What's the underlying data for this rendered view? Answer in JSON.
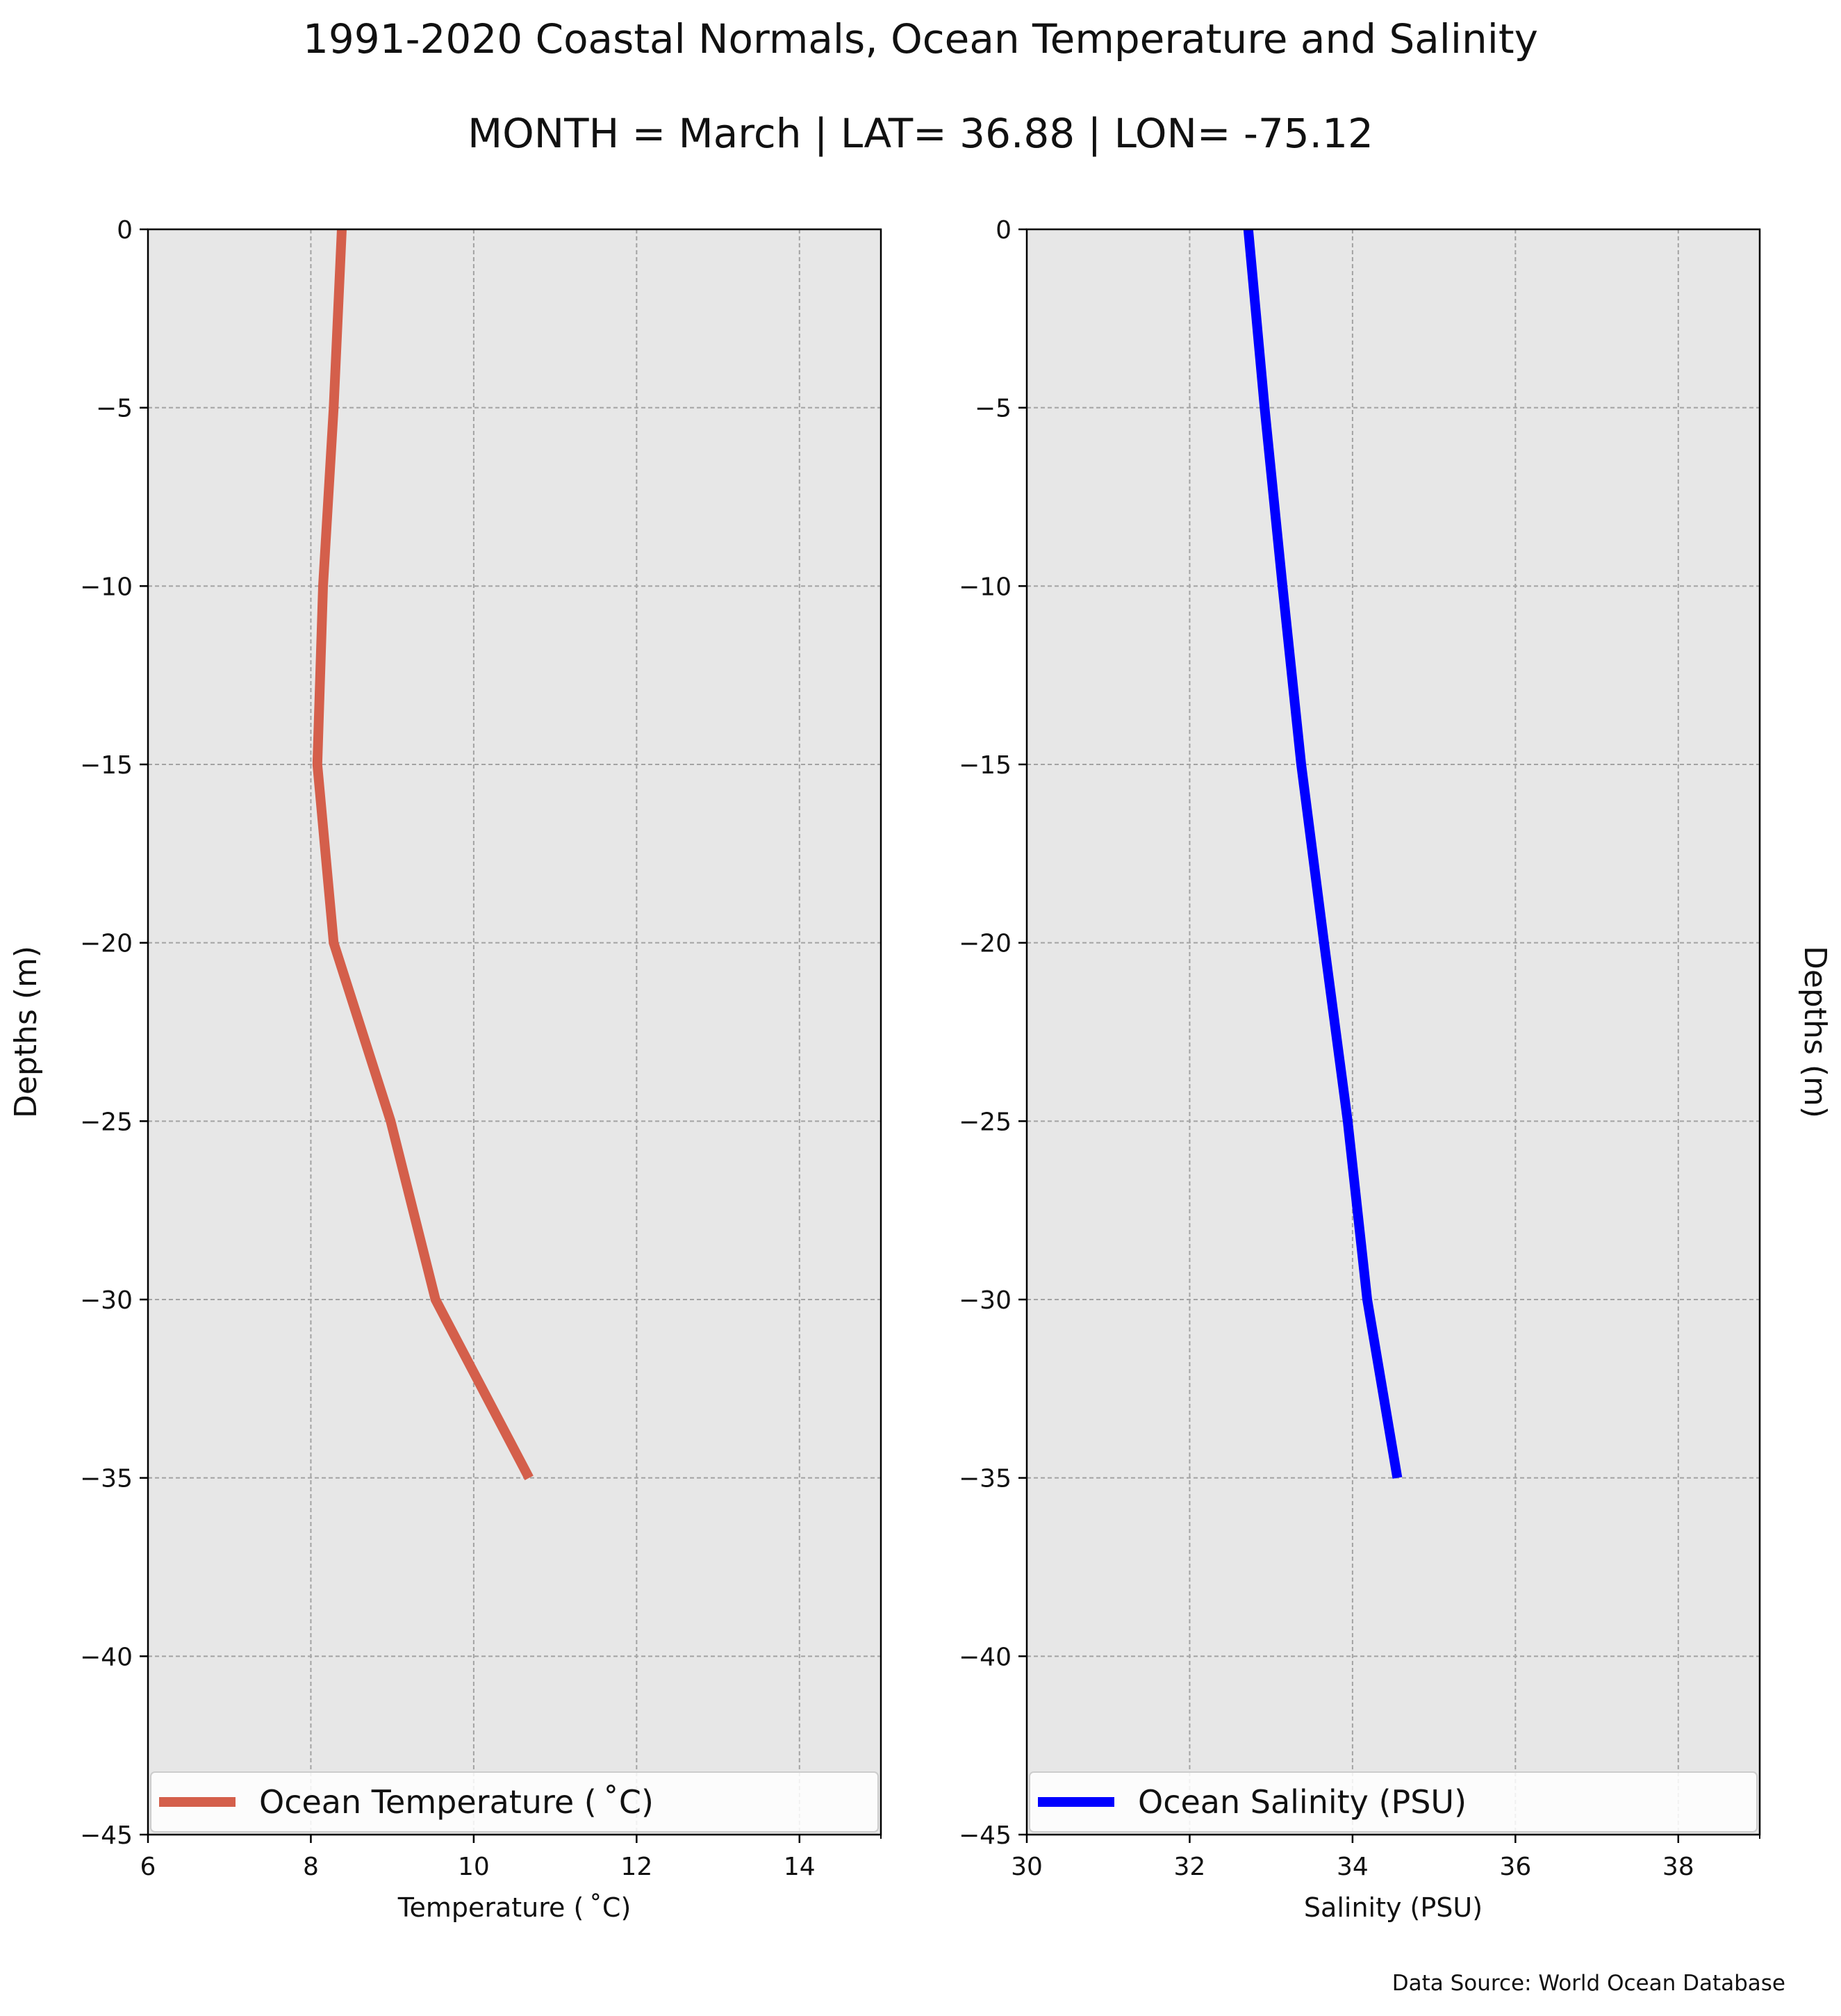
{
  "title": "1991-2020 Coastal Normals, Ocean Temperature and Salinity",
  "subtitle": "MONTH = March | LAT= 36.88 | LON= -75.12",
  "source_note": "Data Source: World Ocean Database",
  "chart_data": [
    {
      "type": "line",
      "xlabel": "Temperature ($^\\circ$C)",
      "xlabel_display": "Temperature ( ˚C)",
      "ylabel": "Depths (m)",
      "xlim": [
        6,
        15
      ],
      "ylim": [
        -45,
        0
      ],
      "xticks": [
        6,
        8,
        10,
        12,
        14
      ],
      "xtick_labels": [
        "6",
        "8",
        "10",
        "12",
        "14"
      ],
      "yticks": [
        0,
        -5,
        -10,
        -15,
        -20,
        -25,
        -30,
        -35,
        -40,
        -45
      ],
      "ytick_labels": [
        "0",
        "−5",
        "−10",
        "−15",
        "−20",
        "−25",
        "−30",
        "−35",
        "−40",
        "−45"
      ],
      "grid": true,
      "legend_placement": "bottom",
      "series": [
        {
          "name": "Ocean Temperature ( ˚C)",
          "color": "#d45f4b",
          "x": [
            8.38,
            8.28,
            8.15,
            8.08,
            8.28,
            8.98,
            9.53,
            10.68
          ],
          "y": [
            0,
            -5,
            -10,
            -15,
            -20,
            -25,
            -30,
            -35
          ]
        }
      ]
    },
    {
      "type": "line",
      "xlabel": "Salinity (PSU)",
      "xlabel_display": "Salinity (PSU)",
      "ylabel": "Depths (m)",
      "xlim": [
        30,
        39
      ],
      "ylim": [
        -45,
        0
      ],
      "xticks": [
        30,
        32,
        34,
        36,
        38
      ],
      "xtick_labels": [
        "30",
        "32",
        "34",
        "36",
        "38"
      ],
      "yticks": [
        0,
        -5,
        -10,
        -15,
        -20,
        -25,
        -30,
        -35,
        -40,
        -45
      ],
      "ytick_labels": [
        "0",
        "−5",
        "−10",
        "−15",
        "−20",
        "−25",
        "−30",
        "−35",
        "−40",
        "−45"
      ],
      "grid": true,
      "legend_placement": "bottom",
      "series": [
        {
          "name": "Ocean Salinity (PSU)",
          "color": "#0000ff",
          "x": [
            32.72,
            32.92,
            33.14,
            33.37,
            33.65,
            33.94,
            34.18,
            34.55
          ],
          "y": [
            0,
            -5,
            -10,
            -15,
            -20,
            -25,
            -30,
            -35
          ]
        }
      ]
    }
  ]
}
